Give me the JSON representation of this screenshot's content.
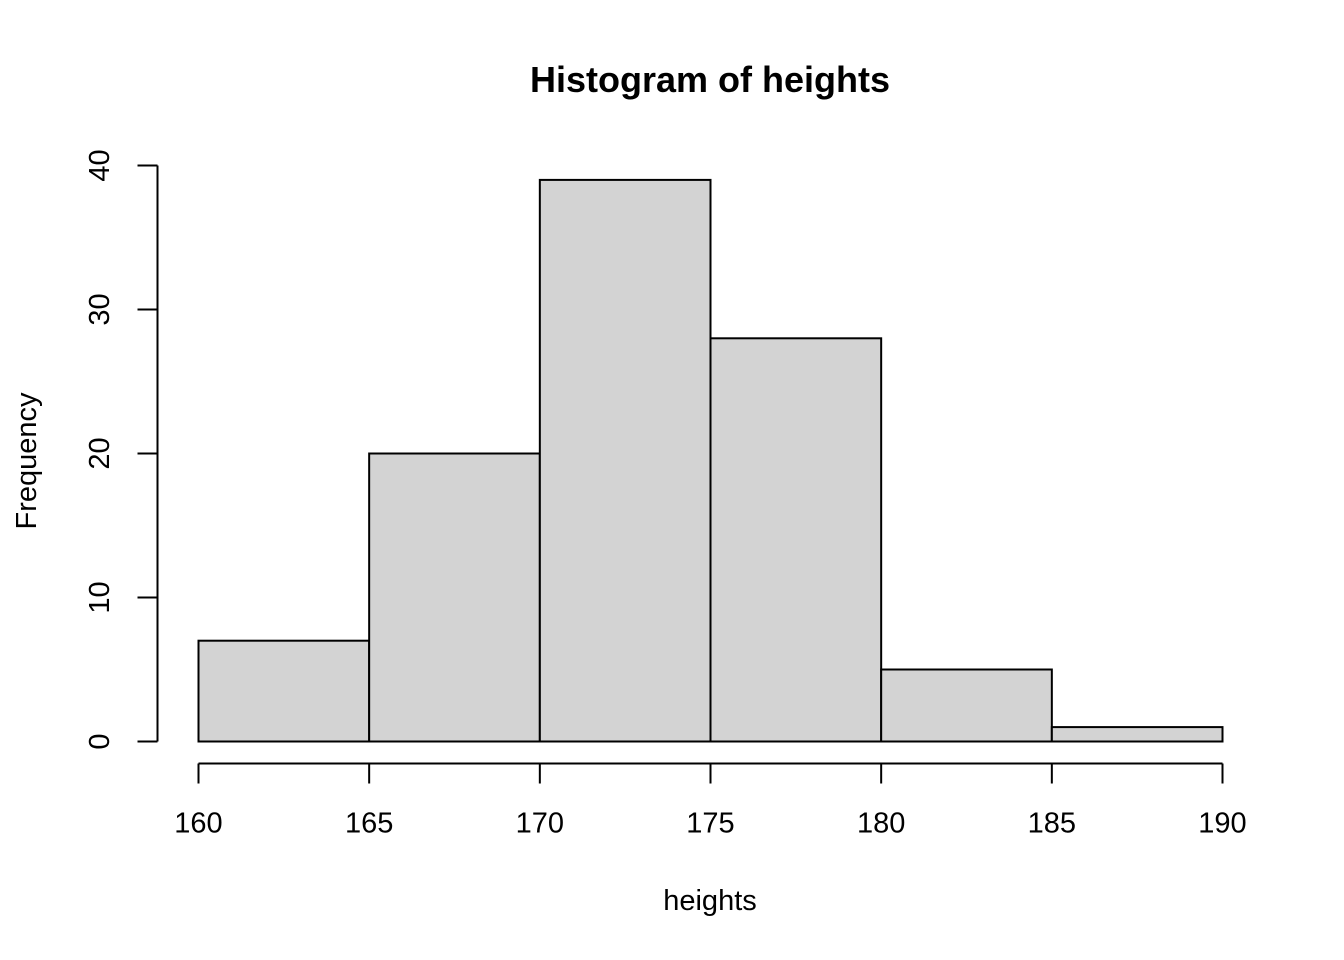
{
  "chart_data": {
    "type": "bar",
    "title": "Histogram of heights",
    "xlabel": "heights",
    "ylabel": "Frequency",
    "bins": [
      {
        "from": 160,
        "to": 165,
        "count": 7
      },
      {
        "from": 165,
        "to": 170,
        "count": 20
      },
      {
        "from": 170,
        "to": 175,
        "count": 39
      },
      {
        "from": 175,
        "to": 180,
        "count": 28
      },
      {
        "from": 180,
        "to": 185,
        "count": 5
      },
      {
        "from": 185,
        "to": 190,
        "count": 1
      }
    ],
    "x_ticks": [
      160,
      165,
      170,
      175,
      180,
      185,
      190
    ],
    "y_ticks": [
      0,
      10,
      20,
      30,
      40
    ],
    "xlim": [
      160,
      190
    ],
    "ylim": [
      0,
      40
    ],
    "grid": false,
    "legend": "none",
    "colors": {
      "bar_fill": "#d3d3d3",
      "bar_stroke": "#000000",
      "axis": "#000000"
    }
  }
}
